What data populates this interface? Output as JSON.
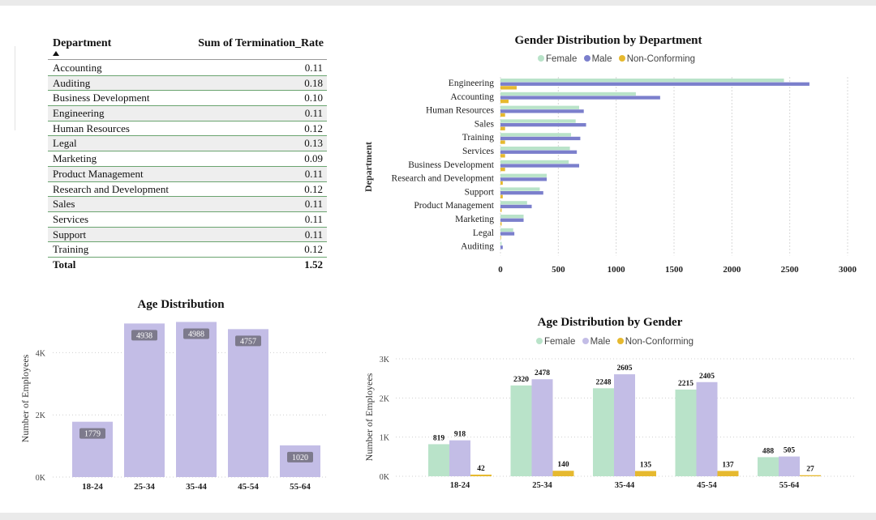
{
  "table": {
    "col1_header": "Department",
    "col2_header": "Sum of Termination_Rate",
    "rows": [
      {
        "name": "Accounting",
        "value": "0.11"
      },
      {
        "name": "Auditing",
        "value": "0.18"
      },
      {
        "name": "Business Development",
        "value": "0.10"
      },
      {
        "name": "Engineering",
        "value": "0.11"
      },
      {
        "name": "Human Resources",
        "value": "0.12"
      },
      {
        "name": "Legal",
        "value": "0.13"
      },
      {
        "name": "Marketing",
        "value": "0.09"
      },
      {
        "name": "Product Management",
        "value": "0.11"
      },
      {
        "name": "Research and Development",
        "value": "0.12"
      },
      {
        "name": "Sales",
        "value": "0.11"
      },
      {
        "name": "Services",
        "value": "0.11"
      },
      {
        "name": "Support",
        "value": "0.11"
      },
      {
        "name": "Training",
        "value": "0.12"
      }
    ],
    "total_label": "Total",
    "total_value": "1.52"
  },
  "colors": {
    "female": "#b9e3c9",
    "male": "#7b7fcc",
    "male_light": "#c3bde6",
    "nonconf": "#e6b92f",
    "age_bar": "#c3bde6"
  },
  "chart_data": [
    {
      "type": "bar",
      "orientation": "horizontal",
      "title": "Gender Distribution by Department",
      "ylabel": "Department",
      "xlabel": "",
      "xlim": [
        0,
        3000
      ],
      "x_ticks": [
        "0",
        "500",
        "1000",
        "1500",
        "2000",
        "2500",
        "3000"
      ],
      "legend": [
        "Female",
        "Male",
        "Non-Conforming"
      ],
      "legend_position": "top",
      "categories": [
        "Engineering",
        "Accounting",
        "Human Resources",
        "Sales",
        "Training",
        "Services",
        "Business Development",
        "Research and Development",
        "Support",
        "Product Management",
        "Marketing",
        "Legal",
        "Auditing"
      ],
      "series": [
        {
          "name": "Female",
          "values": [
            2450,
            1170,
            680,
            650,
            610,
            600,
            590,
            400,
            340,
            230,
            200,
            110,
            10
          ]
        },
        {
          "name": "Male",
          "values": [
            2670,
            1380,
            720,
            740,
            690,
            660,
            680,
            400,
            370,
            270,
            200,
            120,
            20
          ]
        },
        {
          "name": "Non-Conforming",
          "values": [
            140,
            70,
            40,
            40,
            40,
            40,
            40,
            20,
            20,
            10,
            10,
            5,
            0
          ]
        }
      ]
    },
    {
      "type": "bar",
      "title": "Age Distribution",
      "ylabel": "Number of Employees",
      "xlabel": "",
      "ylim": [
        0,
        5000
      ],
      "y_ticks": [
        "0K",
        "2K",
        "4K"
      ],
      "categories": [
        "18-24",
        "25-34",
        "35-44",
        "45-54",
        "55-64"
      ],
      "values": [
        1779,
        4938,
        4988,
        4757,
        1020
      ],
      "data_labels": [
        "1779",
        "4938",
        "4988",
        "4757",
        "1020"
      ]
    },
    {
      "type": "bar",
      "title": "Age Distribution by Gender",
      "ylabel": "Number of Employees",
      "xlabel": "",
      "ylim": [
        0,
        3000
      ],
      "y_ticks": [
        "0K",
        "1K",
        "2K",
        "3K"
      ],
      "legend": [
        "Female",
        "Male",
        "Non-Conforming"
      ],
      "legend_position": "top",
      "categories": [
        "18-24",
        "25-34",
        "35-44",
        "45-54",
        "55-64"
      ],
      "series": [
        {
          "name": "Female",
          "values": [
            819,
            2320,
            2248,
            2215,
            488
          ]
        },
        {
          "name": "Male",
          "values": [
            918,
            2478,
            2605,
            2405,
            505
          ]
        },
        {
          "name": "Non-Conforming",
          "values": [
            42,
            140,
            135,
            137,
            27
          ]
        }
      ]
    }
  ]
}
